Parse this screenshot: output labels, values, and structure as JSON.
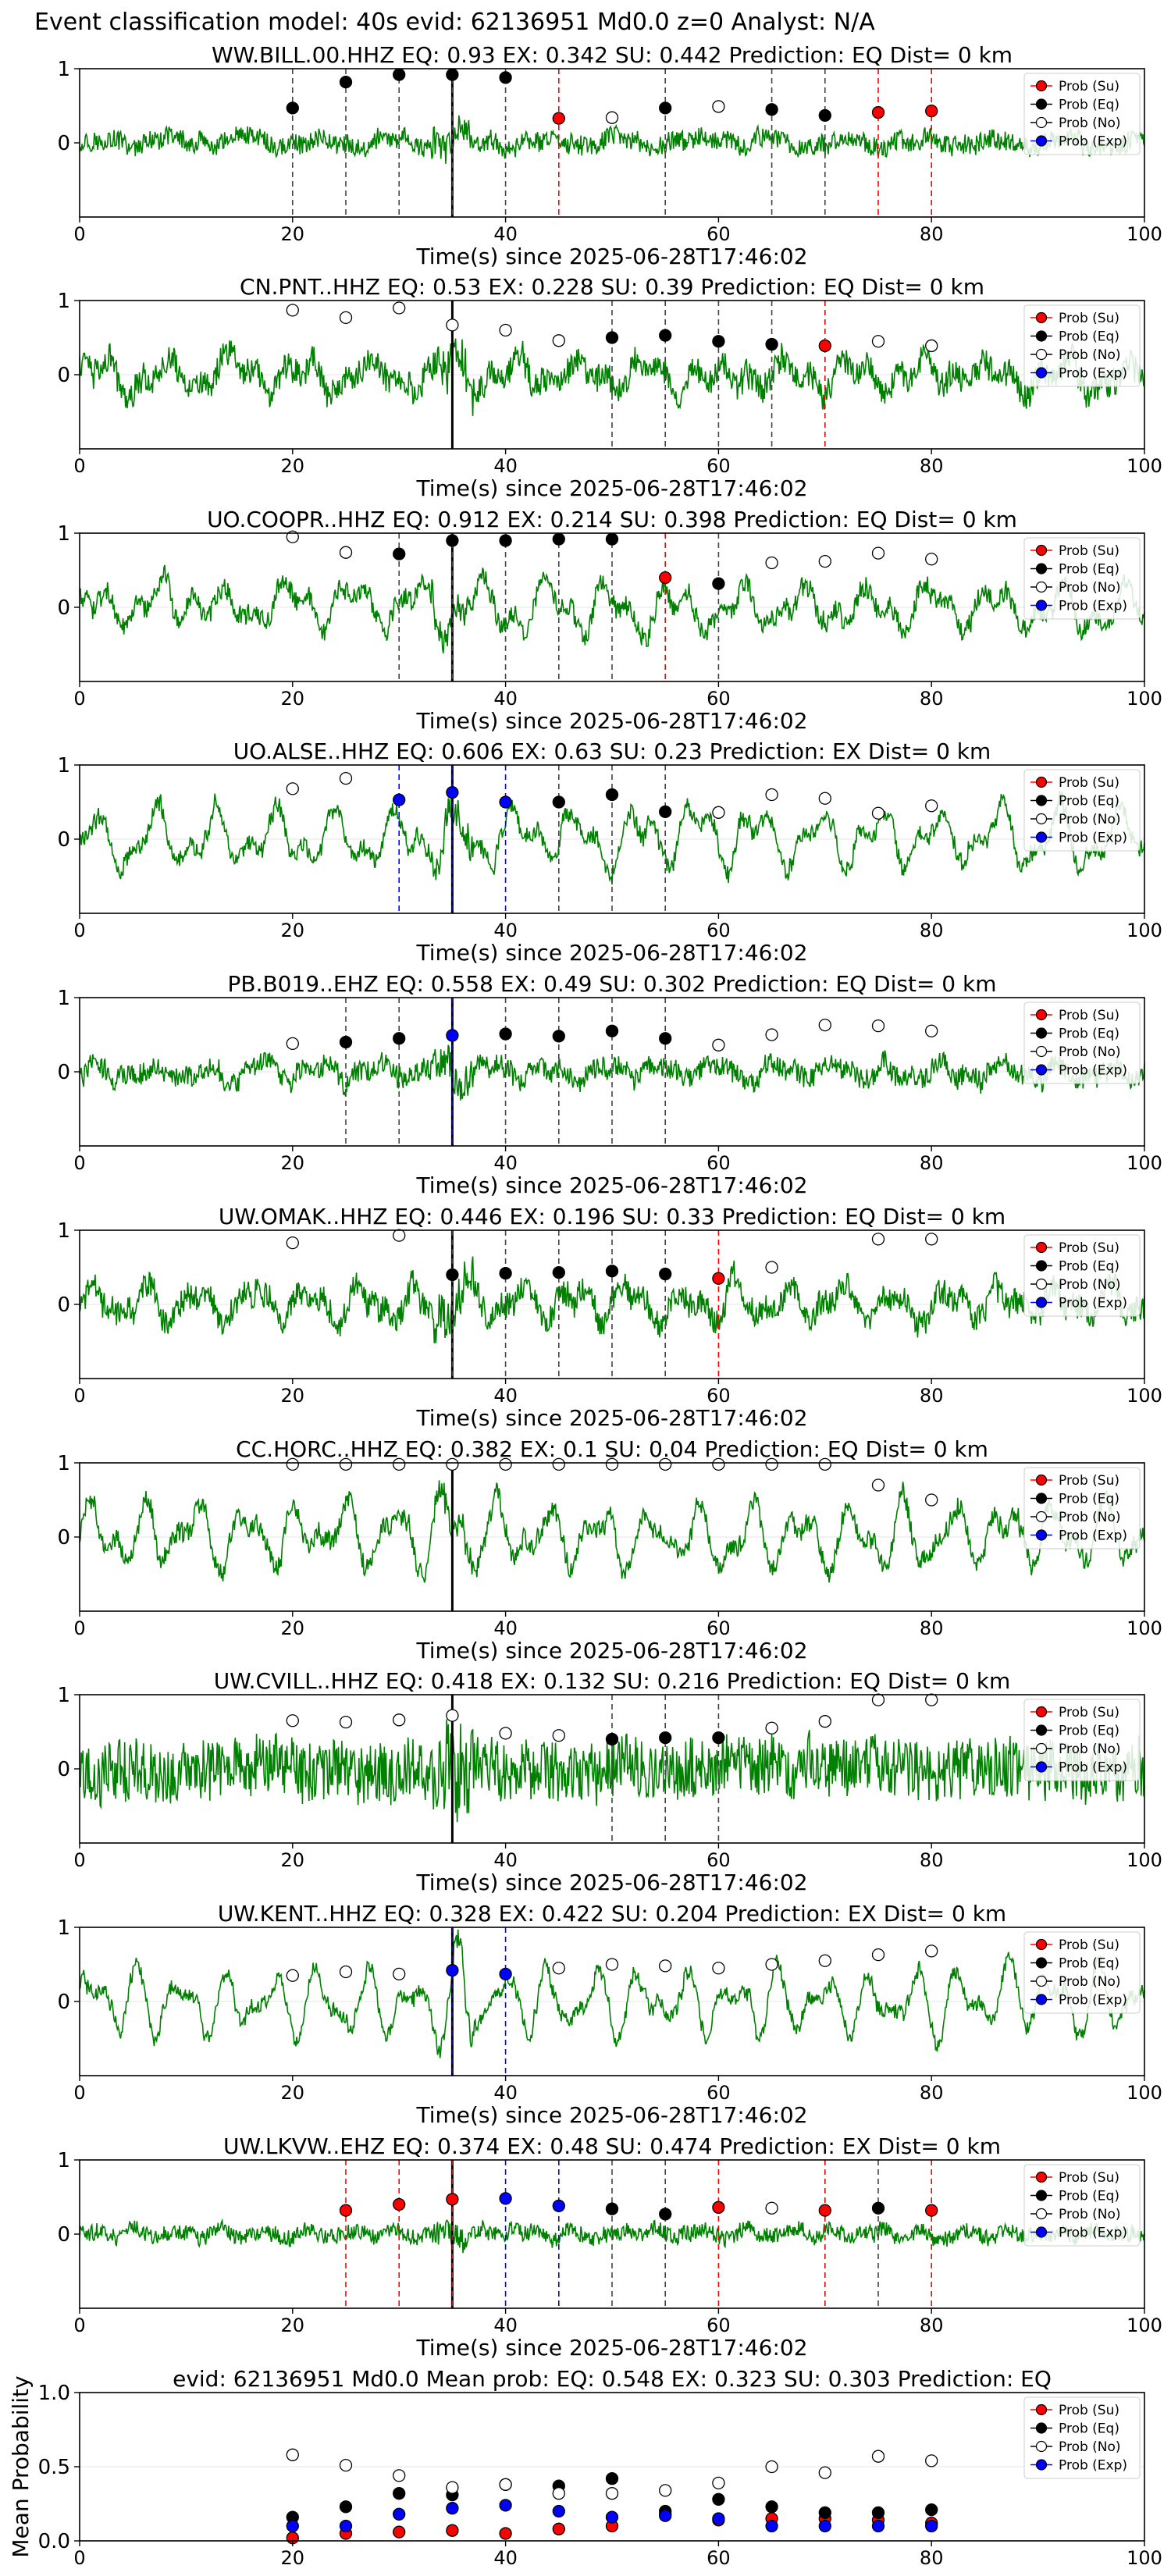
{
  "figure": {
    "suptitle": "Event classification model: 40s evid: 62136951 Md0.0 z=0 Analyst: N/A"
  },
  "colors": {
    "waveform": "#008000",
    "su": "#ff0000",
    "eq": "#000000",
    "no": "#ffffff",
    "exp": "#0000ff",
    "frame": "#000000"
  },
  "legend_labels": [
    "Prob (Su)",
    "Prob (Eq)",
    "Prob (No)",
    "Prob (Exp)"
  ],
  "chart_data": [
    {
      "type": "line",
      "title": "WW.BILL.00.HHZ   EQ: 0.93   EX: 0.342   SU: 0.442   Prediction: EQ    Dist= 0 km",
      "xlabel": "Time(s) since 2025-06-28T17:46:02",
      "xlim": [
        0,
        100
      ],
      "ylim": [
        -1,
        1
      ],
      "xticks": [
        0,
        20,
        40,
        60,
        80,
        100
      ],
      "yticks": [
        0,
        1
      ],
      "legend": "right",
      "waveform_amp": 0.22,
      "waveform_hf": 0.6,
      "picks": [
        35
      ],
      "points": [
        {
          "t": 20,
          "p": 0.47,
          "c": "eq"
        },
        {
          "t": 25,
          "p": 0.82,
          "c": "eq"
        },
        {
          "t": 30,
          "p": 0.92,
          "c": "eq"
        },
        {
          "t": 35,
          "p": 0.92,
          "c": "eq"
        },
        {
          "t": 40,
          "p": 0.88,
          "c": "eq"
        },
        {
          "t": 45,
          "p": 0.33,
          "c": "su"
        },
        {
          "t": 50,
          "p": 0.34,
          "c": "no"
        },
        {
          "t": 55,
          "p": 0.47,
          "c": "eq"
        },
        {
          "t": 60,
          "p": 0.49,
          "c": "no"
        },
        {
          "t": 65,
          "p": 0.45,
          "c": "eq"
        },
        {
          "t": 70,
          "p": 0.37,
          "c": "eq"
        },
        {
          "t": 75,
          "p": 0.41,
          "c": "su"
        },
        {
          "t": 80,
          "p": 0.43,
          "c": "su"
        }
      ]
    },
    {
      "type": "line",
      "title": "CN.PNT..HHZ   EQ: 0.53   EX: 0.228   SU: 0.39   Prediction: EQ    Dist= 0 km",
      "xlabel": "Time(s) since 2025-06-28T17:46:02",
      "xlim": [
        0,
        100
      ],
      "ylim": [
        -1,
        1
      ],
      "xticks": [
        0,
        20,
        40,
        60,
        80,
        100
      ],
      "yticks": [
        0,
        1
      ],
      "legend": "right",
      "waveform_amp": 0.45,
      "waveform_hf": 0.4,
      "picks": [
        35
      ],
      "points": [
        {
          "t": 20,
          "p": 0.87,
          "c": "no"
        },
        {
          "t": 25,
          "p": 0.77,
          "c": "no"
        },
        {
          "t": 30,
          "p": 0.9,
          "c": "no"
        },
        {
          "t": 35,
          "p": 0.67,
          "c": "no"
        },
        {
          "t": 40,
          "p": 0.6,
          "c": "no"
        },
        {
          "t": 45,
          "p": 0.46,
          "c": "no"
        },
        {
          "t": 50,
          "p": 0.5,
          "c": "eq"
        },
        {
          "t": 55,
          "p": 0.53,
          "c": "eq"
        },
        {
          "t": 60,
          "p": 0.45,
          "c": "eq"
        },
        {
          "t": 65,
          "p": 0.41,
          "c": "eq"
        },
        {
          "t": 70,
          "p": 0.39,
          "c": "su"
        },
        {
          "t": 75,
          "p": 0.45,
          "c": "no"
        },
        {
          "t": 80,
          "p": 0.39,
          "c": "no"
        }
      ]
    },
    {
      "type": "line",
      "title": "UO.COOPR..HHZ   EQ: 0.912  EX: 0.214  SU: 0.398   Prediction: EQ    Dist= 0 km",
      "xlabel": "Time(s) since 2025-06-28T17:46:02",
      "xlim": [
        0,
        100
      ],
      "ylim": [
        -1,
        1
      ],
      "xticks": [
        0,
        20,
        40,
        60,
        80,
        100
      ],
      "yticks": [
        0,
        1
      ],
      "legend": "right",
      "waveform_amp": 0.5,
      "waveform_hf": 0.25,
      "picks": [
        35
      ],
      "points": [
        {
          "t": 20,
          "p": 0.95,
          "c": "no"
        },
        {
          "t": 25,
          "p": 0.74,
          "c": "no"
        },
        {
          "t": 30,
          "p": 0.72,
          "c": "eq"
        },
        {
          "t": 35,
          "p": 0.9,
          "c": "eq"
        },
        {
          "t": 40,
          "p": 0.9,
          "c": "eq"
        },
        {
          "t": 45,
          "p": 0.92,
          "c": "eq"
        },
        {
          "t": 50,
          "p": 0.92,
          "c": "eq"
        },
        {
          "t": 55,
          "p": 0.4,
          "c": "su"
        },
        {
          "t": 60,
          "p": 0.32,
          "c": "eq"
        },
        {
          "t": 65,
          "p": 0.6,
          "c": "no"
        },
        {
          "t": 70,
          "p": 0.62,
          "c": "no"
        },
        {
          "t": 75,
          "p": 0.73,
          "c": "no"
        },
        {
          "t": 80,
          "p": 0.65,
          "c": "no"
        }
      ]
    },
    {
      "type": "line",
      "title": "UO.ALSE..HHZ   EQ: 0.606  EX: 0.63  SU: 0.23   Prediction: EX    Dist= 0 km",
      "xlabel": "Time(s) since 2025-06-28T17:46:02",
      "xlim": [
        0,
        100
      ],
      "ylim": [
        -1,
        1
      ],
      "xticks": [
        0,
        20,
        40,
        60,
        80,
        100
      ],
      "yticks": [
        0,
        1
      ],
      "legend": "right",
      "waveform_amp": 0.55,
      "waveform_hf": 0.2,
      "picks": [
        35
      ],
      "points": [
        {
          "t": 20,
          "p": 0.68,
          "c": "no"
        },
        {
          "t": 25,
          "p": 0.82,
          "c": "no"
        },
        {
          "t": 30,
          "p": 0.53,
          "c": "exp"
        },
        {
          "t": 35,
          "p": 0.63,
          "c": "exp"
        },
        {
          "t": 40,
          "p": 0.5,
          "c": "exp"
        },
        {
          "t": 45,
          "p": 0.5,
          "c": "eq"
        },
        {
          "t": 50,
          "p": 0.6,
          "c": "eq"
        },
        {
          "t": 55,
          "p": 0.37,
          "c": "eq"
        },
        {
          "t": 60,
          "p": 0.36,
          "c": "no"
        },
        {
          "t": 65,
          "p": 0.6,
          "c": "no"
        },
        {
          "t": 70,
          "p": 0.55,
          "c": "no"
        },
        {
          "t": 75,
          "p": 0.35,
          "c": "no"
        },
        {
          "t": 80,
          "p": 0.45,
          "c": "no"
        }
      ]
    },
    {
      "type": "line",
      "title": "PB.B019..EHZ   EQ: 0.558  EX: 0.49  SU: 0.302   Prediction: EQ    Dist= 0 km",
      "xlabel": "Time(s) since 2025-06-28T17:46:02",
      "xlim": [
        0,
        100
      ],
      "ylim": [
        -1,
        1
      ],
      "xticks": [
        0,
        20,
        40,
        60,
        80,
        100
      ],
      "yticks": [
        0,
        1
      ],
      "legend": "right",
      "waveform_amp": 0.28,
      "waveform_hf": 0.5,
      "picks": [
        35
      ],
      "points": [
        {
          "t": 20,
          "p": 0.38,
          "c": "no"
        },
        {
          "t": 25,
          "p": 0.4,
          "c": "eq"
        },
        {
          "t": 30,
          "p": 0.45,
          "c": "eq"
        },
        {
          "t": 35,
          "p": 0.49,
          "c": "exp"
        },
        {
          "t": 40,
          "p": 0.51,
          "c": "eq"
        },
        {
          "t": 45,
          "p": 0.48,
          "c": "eq"
        },
        {
          "t": 50,
          "p": 0.55,
          "c": "eq"
        },
        {
          "t": 55,
          "p": 0.45,
          "c": "eq"
        },
        {
          "t": 60,
          "p": 0.36,
          "c": "no"
        },
        {
          "t": 65,
          "p": 0.5,
          "c": "no"
        },
        {
          "t": 70,
          "p": 0.63,
          "c": "no"
        },
        {
          "t": 75,
          "p": 0.62,
          "c": "no"
        },
        {
          "t": 80,
          "p": 0.55,
          "c": "no"
        }
      ]
    },
    {
      "type": "line",
      "title": "UW.OMAK..HHZ   EQ: 0.446  EX: 0.196  SU: 0.33   Prediction: EQ    Dist= 0 km",
      "xlabel": "Time(s) since 2025-06-28T17:46:02",
      "xlim": [
        0,
        100
      ],
      "ylim": [
        -1,
        1
      ],
      "xticks": [
        0,
        20,
        40,
        60,
        80,
        100
      ],
      "yticks": [
        0,
        1
      ],
      "legend": "right",
      "waveform_amp": 0.45,
      "waveform_hf": 0.4,
      "picks": [
        35
      ],
      "points": [
        {
          "t": 20,
          "p": 0.83,
          "c": "no"
        },
        {
          "t": 30,
          "p": 0.93,
          "c": "no"
        },
        {
          "t": 35,
          "p": 0.4,
          "c": "eq"
        },
        {
          "t": 40,
          "p": 0.42,
          "c": "eq"
        },
        {
          "t": 45,
          "p": 0.43,
          "c": "eq"
        },
        {
          "t": 50,
          "p": 0.45,
          "c": "eq"
        },
        {
          "t": 55,
          "p": 0.41,
          "c": "eq"
        },
        {
          "t": 60,
          "p": 0.35,
          "c": "su"
        },
        {
          "t": 65,
          "p": 0.5,
          "c": "no"
        },
        {
          "t": 75,
          "p": 0.88,
          "c": "no"
        },
        {
          "t": 80,
          "p": 0.88,
          "c": "no"
        }
      ]
    },
    {
      "type": "line",
      "title": "CC.HORC..HHZ   EQ: 0.382  EX: 0.1  SU: 0.04   Prediction: EQ    Dist= 0 km",
      "xlabel": "Time(s) since 2025-06-28T17:46:02",
      "xlim": [
        0,
        100
      ],
      "ylim": [
        -1,
        1
      ],
      "xticks": [
        0,
        20,
        40,
        60,
        80,
        100
      ],
      "yticks": [
        0,
        1
      ],
      "legend": "right",
      "waveform_amp": 0.6,
      "waveform_hf": 0.2,
      "picks": [
        35
      ],
      "points": [
        {
          "t": 20,
          "p": 0.98,
          "c": "no"
        },
        {
          "t": 25,
          "p": 0.98,
          "c": "no"
        },
        {
          "t": 30,
          "p": 0.98,
          "c": "no"
        },
        {
          "t": 35,
          "p": 0.98,
          "c": "no"
        },
        {
          "t": 40,
          "p": 0.98,
          "c": "no"
        },
        {
          "t": 45,
          "p": 0.98,
          "c": "no"
        },
        {
          "t": 50,
          "p": 0.98,
          "c": "no"
        },
        {
          "t": 55,
          "p": 0.98,
          "c": "no"
        },
        {
          "t": 60,
          "p": 0.98,
          "c": "no"
        },
        {
          "t": 65,
          "p": 0.98,
          "c": "no"
        },
        {
          "t": 70,
          "p": 0.98,
          "c": "no"
        },
        {
          "t": 75,
          "p": 0.7,
          "c": "no"
        },
        {
          "t": 80,
          "p": 0.5,
          "c": "no"
        }
      ]
    },
    {
      "type": "line",
      "title": "UW.CVILL..HHZ   EQ: 0.418  EX: 0.132  SU: 0.216   Prediction: EQ    Dist= 0 km",
      "xlabel": "Time(s) since 2025-06-28T17:46:02",
      "xlim": [
        0,
        100
      ],
      "ylim": [
        -1,
        1
      ],
      "xticks": [
        0,
        20,
        40,
        60,
        80,
        100
      ],
      "yticks": [
        0,
        1
      ],
      "legend": "right",
      "waveform_amp": 0.45,
      "waveform_hf": 0.9,
      "picks": [
        35
      ],
      "points": [
        {
          "t": 20,
          "p": 0.65,
          "c": "no"
        },
        {
          "t": 25,
          "p": 0.63,
          "c": "no"
        },
        {
          "t": 30,
          "p": 0.66,
          "c": "no"
        },
        {
          "t": 35,
          "p": 0.72,
          "c": "no"
        },
        {
          "t": 40,
          "p": 0.48,
          "c": "no"
        },
        {
          "t": 45,
          "p": 0.45,
          "c": "no"
        },
        {
          "t": 50,
          "p": 0.4,
          "c": "eq"
        },
        {
          "t": 55,
          "p": 0.42,
          "c": "eq"
        },
        {
          "t": 60,
          "p": 0.42,
          "c": "eq"
        },
        {
          "t": 65,
          "p": 0.55,
          "c": "no"
        },
        {
          "t": 70,
          "p": 0.64,
          "c": "no"
        },
        {
          "t": 75,
          "p": 0.93,
          "c": "no"
        },
        {
          "t": 80,
          "p": 0.93,
          "c": "no"
        }
      ]
    },
    {
      "type": "line",
      "title": "UW.KENT..HHZ   EQ: 0.328  EX: 0.422  SU: 0.204   Prediction: EX    Dist= 0 km",
      "xlabel": "Time(s) since 2025-06-28T17:46:02",
      "xlim": [
        0,
        100
      ],
      "ylim": [
        -1,
        1
      ],
      "xticks": [
        0,
        20,
        40,
        60,
        80,
        100
      ],
      "yticks": [
        0,
        1
      ],
      "legend": "right",
      "waveform_amp": 0.6,
      "waveform_hf": 0.15,
      "picks": [
        35
      ],
      "points": [
        {
          "t": 20,
          "p": 0.35,
          "c": "no"
        },
        {
          "t": 25,
          "p": 0.4,
          "c": "no"
        },
        {
          "t": 30,
          "p": 0.37,
          "c": "no"
        },
        {
          "t": 35,
          "p": 0.42,
          "c": "exp"
        },
        {
          "t": 40,
          "p": 0.37,
          "c": "exp"
        },
        {
          "t": 45,
          "p": 0.45,
          "c": "no"
        },
        {
          "t": 50,
          "p": 0.5,
          "c": "no"
        },
        {
          "t": 55,
          "p": 0.48,
          "c": "no"
        },
        {
          "t": 60,
          "p": 0.45,
          "c": "no"
        },
        {
          "t": 65,
          "p": 0.5,
          "c": "no"
        },
        {
          "t": 70,
          "p": 0.55,
          "c": "no"
        },
        {
          "t": 75,
          "p": 0.63,
          "c": "no"
        },
        {
          "t": 80,
          "p": 0.68,
          "c": "no"
        }
      ]
    },
    {
      "type": "line",
      "title": "UW.LKVW..EHZ   EQ: 0.374  EX: 0.48  SU: 0.474   Prediction: EX    Dist= 0 km",
      "xlabel": "Time(s) since 2025-06-28T17:46:02",
      "xlim": [
        0,
        100
      ],
      "ylim": [
        -1,
        1
      ],
      "xticks": [
        0,
        20,
        40,
        60,
        80,
        100
      ],
      "yticks": [
        0,
        1
      ],
      "legend": "right",
      "waveform_amp": 0.18,
      "waveform_hf": 0.6,
      "picks": [
        35
      ],
      "points": [
        {
          "t": 25,
          "p": 0.32,
          "c": "su"
        },
        {
          "t": 30,
          "p": 0.4,
          "c": "su"
        },
        {
          "t": 35,
          "p": 0.47,
          "c": "su"
        },
        {
          "t": 40,
          "p": 0.48,
          "c": "exp"
        },
        {
          "t": 45,
          "p": 0.38,
          "c": "exp"
        },
        {
          "t": 50,
          "p": 0.34,
          "c": "eq"
        },
        {
          "t": 55,
          "p": 0.27,
          "c": "eq"
        },
        {
          "t": 60,
          "p": 0.36,
          "c": "su"
        },
        {
          "t": 65,
          "p": 0.35,
          "c": "no"
        },
        {
          "t": 70,
          "p": 0.32,
          "c": "su"
        },
        {
          "t": 75,
          "p": 0.35,
          "c": "eq"
        },
        {
          "t": 80,
          "p": 0.32,
          "c": "su"
        }
      ]
    },
    {
      "type": "scatter",
      "title": "evid: 62136951   Md0.0   Mean prob:   EQ: 0.548  EX: 0.323  SU: 0.303   Prediction: EQ",
      "ylabel": "Mean Probability",
      "xlim": [
        0,
        100
      ],
      "ylim": [
        0,
        1
      ],
      "xticks": [
        0,
        20,
        40,
        60,
        80,
        100
      ],
      "yticks": [
        0.0,
        0.5,
        1.0
      ],
      "legend": "right",
      "x": [
        20,
        25,
        30,
        35,
        40,
        45,
        50,
        55,
        60,
        65,
        70,
        75,
        80
      ],
      "series": [
        {
          "name": "Prob (Su)",
          "color": "su",
          "values": [
            0.02,
            0.05,
            0.06,
            0.07,
            0.05,
            0.08,
            0.1,
            0.18,
            0.14,
            0.15,
            0.15,
            0.14,
            0.12
          ]
        },
        {
          "name": "Prob (Eq)",
          "color": "eq",
          "values": [
            0.16,
            0.23,
            0.32,
            0.31,
            0.38,
            0.37,
            0.42,
            0.2,
            0.28,
            0.23,
            0.19,
            0.19,
            0.21
          ]
        },
        {
          "name": "Prob (No)",
          "color": "no",
          "values": [
            0.58,
            0.51,
            0.44,
            0.36,
            0.38,
            0.32,
            0.32,
            0.34,
            0.39,
            0.5,
            0.46,
            0.57,
            0.54
          ]
        },
        {
          "name": "Prob (Exp)",
          "color": "exp",
          "values": [
            0.1,
            0.1,
            0.18,
            0.22,
            0.24,
            0.2,
            0.16,
            0.17,
            0.15,
            0.1,
            0.1,
            0.1,
            0.1
          ]
        }
      ]
    }
  ]
}
